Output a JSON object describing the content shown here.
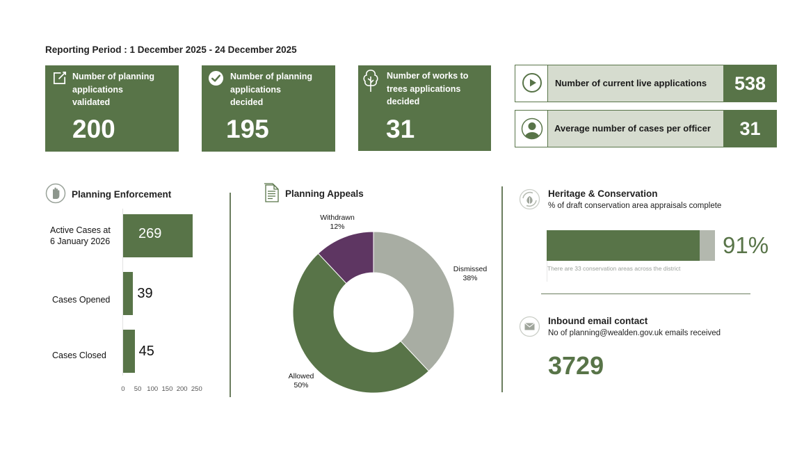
{
  "reporting_period": "Reporting Period : 1 December 2025 - 24 December 2025",
  "tiles": [
    {
      "label_lines": [
        "Number of planning",
        "applications",
        "validated"
      ],
      "value": "200",
      "icon": "edit-icon"
    },
    {
      "label_lines": [
        "Number of planning",
        "applications",
        "decided"
      ],
      "value": "195",
      "icon": "check-circle-icon"
    },
    {
      "label_lines": [
        "Number of works to",
        "trees applications",
        "decided"
      ],
      "value": "31",
      "icon": "tree-icon"
    }
  ],
  "summary_rows": [
    {
      "label": "Number of current live applications",
      "value": "538",
      "icon": "play-icon"
    },
    {
      "label": "Average number of cases per officer",
      "value": "31",
      "icon": "person-icon"
    }
  ],
  "enforcement": {
    "title": "Planning Enforcement",
    "icon": "hand-icon",
    "categories": [
      {
        "label_lines": [
          "Active Cases at",
          "6 January 2026"
        ],
        "value": 269
      },
      {
        "label_lines": [
          "Cases Opened"
        ],
        "value": 39
      },
      {
        "label_lines": [
          "Cases Closed"
        ],
        "value": 45
      }
    ],
    "axis_ticks": [
      "0",
      "50",
      "100",
      "150",
      "200",
      "250"
    ],
    "axis_max": 250
  },
  "appeals": {
    "title": "Planning Appeals",
    "icon": "document-icon",
    "chart_data": {
      "type": "pie",
      "slices": [
        {
          "name": "Dismissed",
          "label": "38%",
          "value": 38,
          "color": "#a8ada3"
        },
        {
          "name": "Allowed",
          "label": "50%",
          "value": 50,
          "color": "#587448"
        },
        {
          "name": "Withdrawn",
          "label": "12%",
          "value": 12,
          "color": "#5e3662"
        }
      ]
    }
  },
  "heritage": {
    "title": "Heritage & Conservation",
    "icon": "leaf-cycle-icon",
    "subtitle": "% of draft conservation area appraisals complete",
    "percent_value": 91,
    "percent_label": "91%",
    "note": "There are 33 conservation areas across the district",
    "fill_color": "#587448",
    "track_color": "#b3b8ae"
  },
  "email": {
    "title": "Inbound email contact",
    "icon": "envelope-icon",
    "subtitle": "No of planning@wealden.gov.uk emails received",
    "value": "3729"
  }
}
